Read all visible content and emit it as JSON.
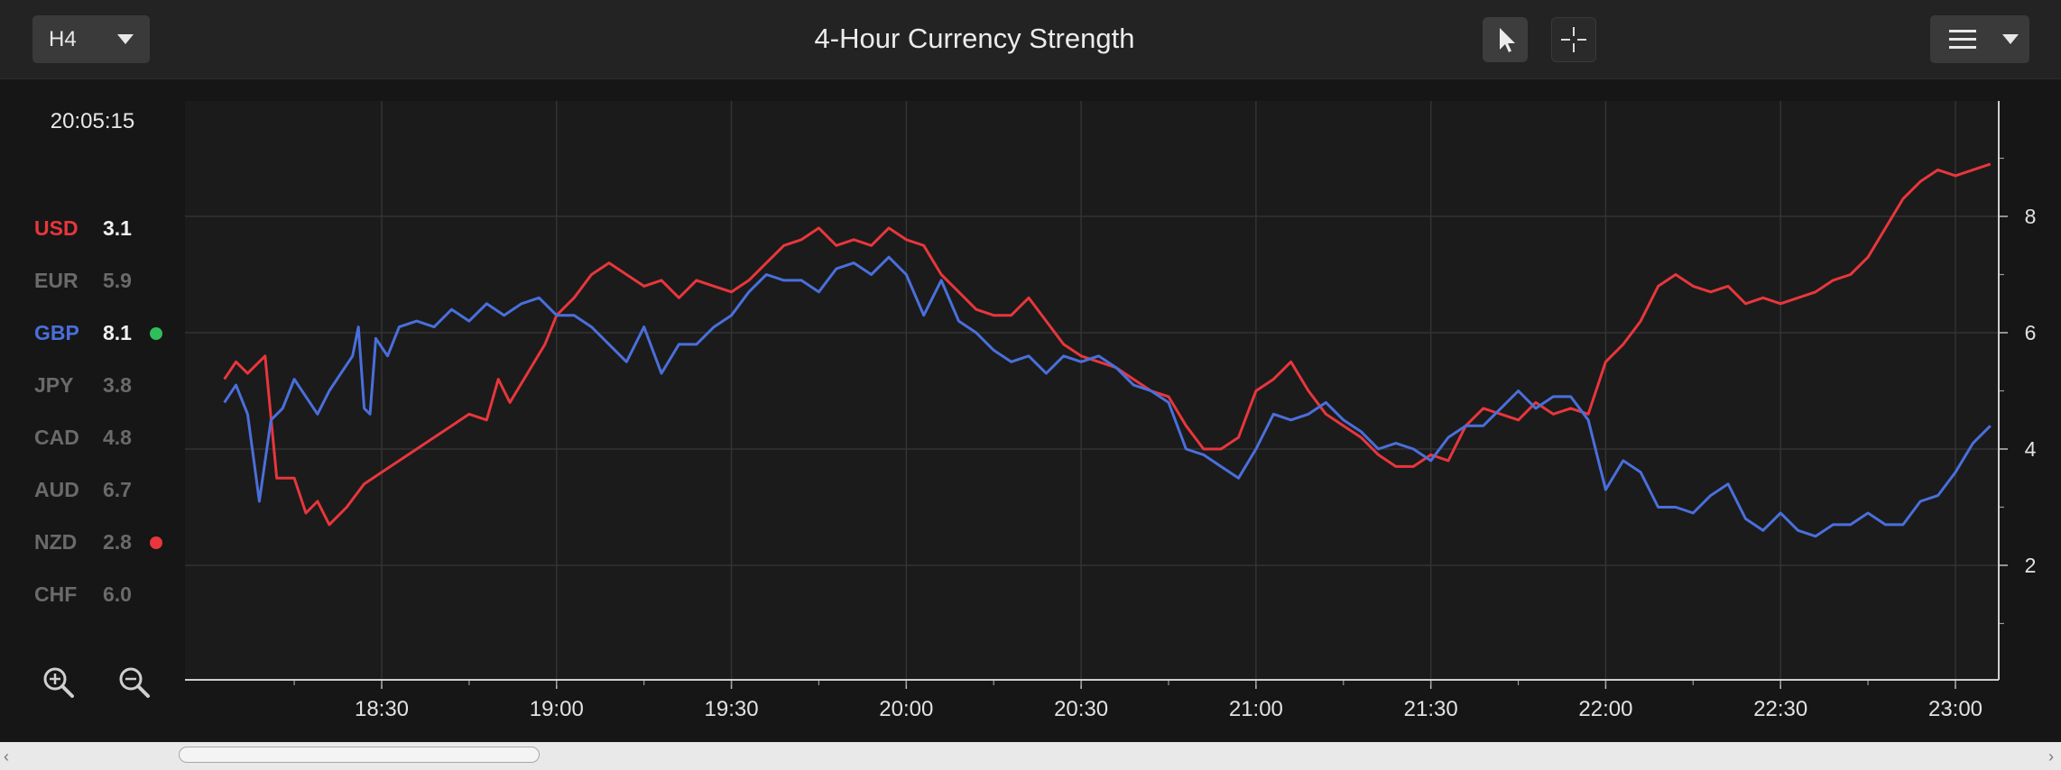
{
  "toolbar": {
    "timeframe": "H4",
    "title": "4-Hour Currency Strength"
  },
  "clock": "20:05:15",
  "legend": [
    {
      "code": "USD",
      "value": "3.1",
      "color": "#e8363c",
      "active": true,
      "dot": ""
    },
    {
      "code": "EUR",
      "value": "5.9",
      "color": "#6a6a6a",
      "active": false,
      "dot": ""
    },
    {
      "code": "GBP",
      "value": "8.1",
      "color": "#4a6fdc",
      "active": true,
      "dot": "#2fbf5a"
    },
    {
      "code": "JPY",
      "value": "3.8",
      "color": "#6a6a6a",
      "active": false,
      "dot": ""
    },
    {
      "code": "CAD",
      "value": "4.8",
      "color": "#6a6a6a",
      "active": false,
      "dot": ""
    },
    {
      "code": "AUD",
      "value": "6.7",
      "color": "#6a6a6a",
      "active": false,
      "dot": ""
    },
    {
      "code": "NZD",
      "value": "2.8",
      "color": "#6a6a6a",
      "active": false,
      "dot": "#e8363c"
    },
    {
      "code": "CHF",
      "value": "6.0",
      "color": "#6a6a6a",
      "active": false,
      "dot": ""
    }
  ],
  "icons": {
    "timeframe_caret": "caret-down-icon",
    "pointer": "cursor-arrow-icon",
    "crosshair": "crosshair-icon",
    "menu": "hamburger-menu-icon",
    "zoom_in": "zoom-in-icon",
    "zoom_out": "zoom-out-icon"
  },
  "chart_data": {
    "type": "line",
    "title": "4-Hour Currency Strength",
    "x_tick_labels": [
      "18:30",
      "19:00",
      "19:30",
      "20:00",
      "20:30",
      "21:00",
      "21:30",
      "22:00",
      "22:30",
      "23:00"
    ],
    "x_range": [
      "18:03",
      "23:07"
    ],
    "y_tick_labels": [
      "2",
      "4",
      "6",
      "8"
    ],
    "ylim": [
      0,
      10
    ],
    "y_axis_side": "right",
    "grid": true,
    "series": [
      {
        "name": "USD",
        "color": "#e8363c",
        "points": [
          [
            "18:03",
            5.2
          ],
          [
            "18:05",
            5.5
          ],
          [
            "18:07",
            5.3
          ],
          [
            "18:10",
            5.6
          ],
          [
            "18:12",
            3.5
          ],
          [
            "18:15",
            3.5
          ],
          [
            "18:17",
            2.9
          ],
          [
            "18:19",
            3.1
          ],
          [
            "18:21",
            2.7
          ],
          [
            "18:24",
            3.0
          ],
          [
            "18:27",
            3.4
          ],
          [
            "18:30",
            3.6
          ],
          [
            "18:33",
            3.8
          ],
          [
            "18:36",
            4.0
          ],
          [
            "18:39",
            4.2
          ],
          [
            "18:42",
            4.4
          ],
          [
            "18:45",
            4.6
          ],
          [
            "18:48",
            4.5
          ],
          [
            "18:50",
            5.2
          ],
          [
            "18:52",
            4.8
          ],
          [
            "18:55",
            5.3
          ],
          [
            "18:58",
            5.8
          ],
          [
            "19:00",
            6.3
          ],
          [
            "19:03",
            6.6
          ],
          [
            "19:06",
            7.0
          ],
          [
            "19:09",
            7.2
          ],
          [
            "19:12",
            7.0
          ],
          [
            "19:15",
            6.8
          ],
          [
            "19:18",
            6.9
          ],
          [
            "19:21",
            6.6
          ],
          [
            "19:24",
            6.9
          ],
          [
            "19:27",
            6.8
          ],
          [
            "19:30",
            6.7
          ],
          [
            "19:33",
            6.9
          ],
          [
            "19:36",
            7.2
          ],
          [
            "19:39",
            7.5
          ],
          [
            "19:42",
            7.6
          ],
          [
            "19:45",
            7.8
          ],
          [
            "19:48",
            7.5
          ],
          [
            "19:51",
            7.6
          ],
          [
            "19:54",
            7.5
          ],
          [
            "19:57",
            7.8
          ],
          [
            "20:00",
            7.6
          ],
          [
            "20:03",
            7.5
          ],
          [
            "20:06",
            7.0
          ],
          [
            "20:09",
            6.7
          ],
          [
            "20:12",
            6.4
          ],
          [
            "20:15",
            6.3
          ],
          [
            "20:18",
            6.3
          ],
          [
            "20:21",
            6.6
          ],
          [
            "20:24",
            6.2
          ],
          [
            "20:27",
            5.8
          ],
          [
            "20:30",
            5.6
          ],
          [
            "20:33",
            5.5
          ],
          [
            "20:36",
            5.4
          ],
          [
            "20:39",
            5.2
          ],
          [
            "20:42",
            5.0
          ],
          [
            "20:45",
            4.9
          ],
          [
            "20:48",
            4.4
          ],
          [
            "20:51",
            4.0
          ],
          [
            "20:54",
            4.0
          ],
          [
            "20:57",
            4.2
          ],
          [
            "21:00",
            5.0
          ],
          [
            "21:03",
            5.2
          ],
          [
            "21:06",
            5.5
          ],
          [
            "21:09",
            5.0
          ],
          [
            "21:12",
            4.6
          ],
          [
            "21:15",
            4.4
          ],
          [
            "21:18",
            4.2
          ],
          [
            "21:21",
            3.9
          ],
          [
            "21:24",
            3.7
          ],
          [
            "21:27",
            3.7
          ],
          [
            "21:30",
            3.9
          ],
          [
            "21:33",
            3.8
          ],
          [
            "21:36",
            4.4
          ],
          [
            "21:39",
            4.7
          ],
          [
            "21:42",
            4.6
          ],
          [
            "21:45",
            4.5
          ],
          [
            "21:48",
            4.8
          ],
          [
            "21:51",
            4.6
          ],
          [
            "21:54",
            4.7
          ],
          [
            "21:57",
            4.6
          ],
          [
            "22:00",
            5.5
          ],
          [
            "22:03",
            5.8
          ],
          [
            "22:06",
            6.2
          ],
          [
            "22:09",
            6.8
          ],
          [
            "22:12",
            7.0
          ],
          [
            "22:15",
            6.8
          ],
          [
            "22:18",
            6.7
          ],
          [
            "22:21",
            6.8
          ],
          [
            "22:24",
            6.5
          ],
          [
            "22:27",
            6.6
          ],
          [
            "22:30",
            6.5
          ],
          [
            "22:33",
            6.6
          ],
          [
            "22:36",
            6.7
          ],
          [
            "22:39",
            6.9
          ],
          [
            "22:42",
            7.0
          ],
          [
            "22:45",
            7.3
          ],
          [
            "22:48",
            7.8
          ],
          [
            "22:51",
            8.3
          ],
          [
            "22:54",
            8.6
          ],
          [
            "22:57",
            8.8
          ],
          [
            "23:00",
            8.7
          ],
          [
            "23:03",
            8.8
          ],
          [
            "23:06",
            8.9
          ]
        ]
      },
      {
        "name": "GBP",
        "color": "#4a6fdc",
        "points": [
          [
            "18:03",
            4.8
          ],
          [
            "18:05",
            5.1
          ],
          [
            "18:07",
            4.6
          ],
          [
            "18:09",
            3.1
          ],
          [
            "18:11",
            4.5
          ],
          [
            "18:13",
            4.7
          ],
          [
            "18:15",
            5.2
          ],
          [
            "18:17",
            4.9
          ],
          [
            "18:19",
            4.6
          ],
          [
            "18:21",
            5.0
          ],
          [
            "18:23",
            5.3
          ],
          [
            "18:25",
            5.6
          ],
          [
            "18:26",
            6.1
          ],
          [
            "18:27",
            4.7
          ],
          [
            "18:28",
            4.6
          ],
          [
            "18:29",
            5.9
          ],
          [
            "18:31",
            5.6
          ],
          [
            "18:33",
            6.1
          ],
          [
            "18:36",
            6.2
          ],
          [
            "18:39",
            6.1
          ],
          [
            "18:42",
            6.4
          ],
          [
            "18:45",
            6.2
          ],
          [
            "18:48",
            6.5
          ],
          [
            "18:51",
            6.3
          ],
          [
            "18:54",
            6.5
          ],
          [
            "18:57",
            6.6
          ],
          [
            "19:00",
            6.3
          ],
          [
            "19:03",
            6.3
          ],
          [
            "19:06",
            6.1
          ],
          [
            "19:09",
            5.8
          ],
          [
            "19:12",
            5.5
          ],
          [
            "19:15",
            6.1
          ],
          [
            "19:18",
            5.3
          ],
          [
            "19:21",
            5.8
          ],
          [
            "19:24",
            5.8
          ],
          [
            "19:27",
            6.1
          ],
          [
            "19:30",
            6.3
          ],
          [
            "19:33",
            6.7
          ],
          [
            "19:36",
            7.0
          ],
          [
            "19:39",
            6.9
          ],
          [
            "19:42",
            6.9
          ],
          [
            "19:45",
            6.7
          ],
          [
            "19:48",
            7.1
          ],
          [
            "19:51",
            7.2
          ],
          [
            "19:54",
            7.0
          ],
          [
            "19:57",
            7.3
          ],
          [
            "20:00",
            7.0
          ],
          [
            "20:03",
            6.3
          ],
          [
            "20:06",
            6.9
          ],
          [
            "20:09",
            6.2
          ],
          [
            "20:12",
            6.0
          ],
          [
            "20:15",
            5.7
          ],
          [
            "20:18",
            5.5
          ],
          [
            "20:21",
            5.6
          ],
          [
            "20:24",
            5.3
          ],
          [
            "20:27",
            5.6
          ],
          [
            "20:30",
            5.5
          ],
          [
            "20:33",
            5.6
          ],
          [
            "20:36",
            5.4
          ],
          [
            "20:39",
            5.1
          ],
          [
            "20:42",
            5.0
          ],
          [
            "20:45",
            4.8
          ],
          [
            "20:48",
            4.0
          ],
          [
            "20:51",
            3.9
          ],
          [
            "20:54",
            3.7
          ],
          [
            "20:57",
            3.5
          ],
          [
            "21:00",
            4.0
          ],
          [
            "21:03",
            4.6
          ],
          [
            "21:06",
            4.5
          ],
          [
            "21:09",
            4.6
          ],
          [
            "21:12",
            4.8
          ],
          [
            "21:15",
            4.5
          ],
          [
            "21:18",
            4.3
          ],
          [
            "21:21",
            4.0
          ],
          [
            "21:24",
            4.1
          ],
          [
            "21:27",
            4.0
          ],
          [
            "21:30",
            3.8
          ],
          [
            "21:33",
            4.2
          ],
          [
            "21:36",
            4.4
          ],
          [
            "21:39",
            4.4
          ],
          [
            "21:42",
            4.7
          ],
          [
            "21:45",
            5.0
          ],
          [
            "21:48",
            4.7
          ],
          [
            "21:51",
            4.9
          ],
          [
            "21:54",
            4.9
          ],
          [
            "21:57",
            4.5
          ],
          [
            "22:00",
            3.3
          ],
          [
            "22:03",
            3.8
          ],
          [
            "22:06",
            3.6
          ],
          [
            "22:09",
            3.0
          ],
          [
            "22:12",
            3.0
          ],
          [
            "22:15",
            2.9
          ],
          [
            "22:18",
            3.2
          ],
          [
            "22:21",
            3.4
          ],
          [
            "22:24",
            2.8
          ],
          [
            "22:27",
            2.6
          ],
          [
            "22:30",
            2.9
          ],
          [
            "22:33",
            2.6
          ],
          [
            "22:36",
            2.5
          ],
          [
            "22:39",
            2.7
          ],
          [
            "22:42",
            2.7
          ],
          [
            "22:45",
            2.9
          ],
          [
            "22:48",
            2.7
          ],
          [
            "22:51",
            2.7
          ],
          [
            "22:54",
            3.1
          ],
          [
            "22:57",
            3.2
          ],
          [
            "23:00",
            3.6
          ],
          [
            "23:03",
            4.1
          ],
          [
            "23:06",
            4.4
          ]
        ]
      }
    ]
  }
}
